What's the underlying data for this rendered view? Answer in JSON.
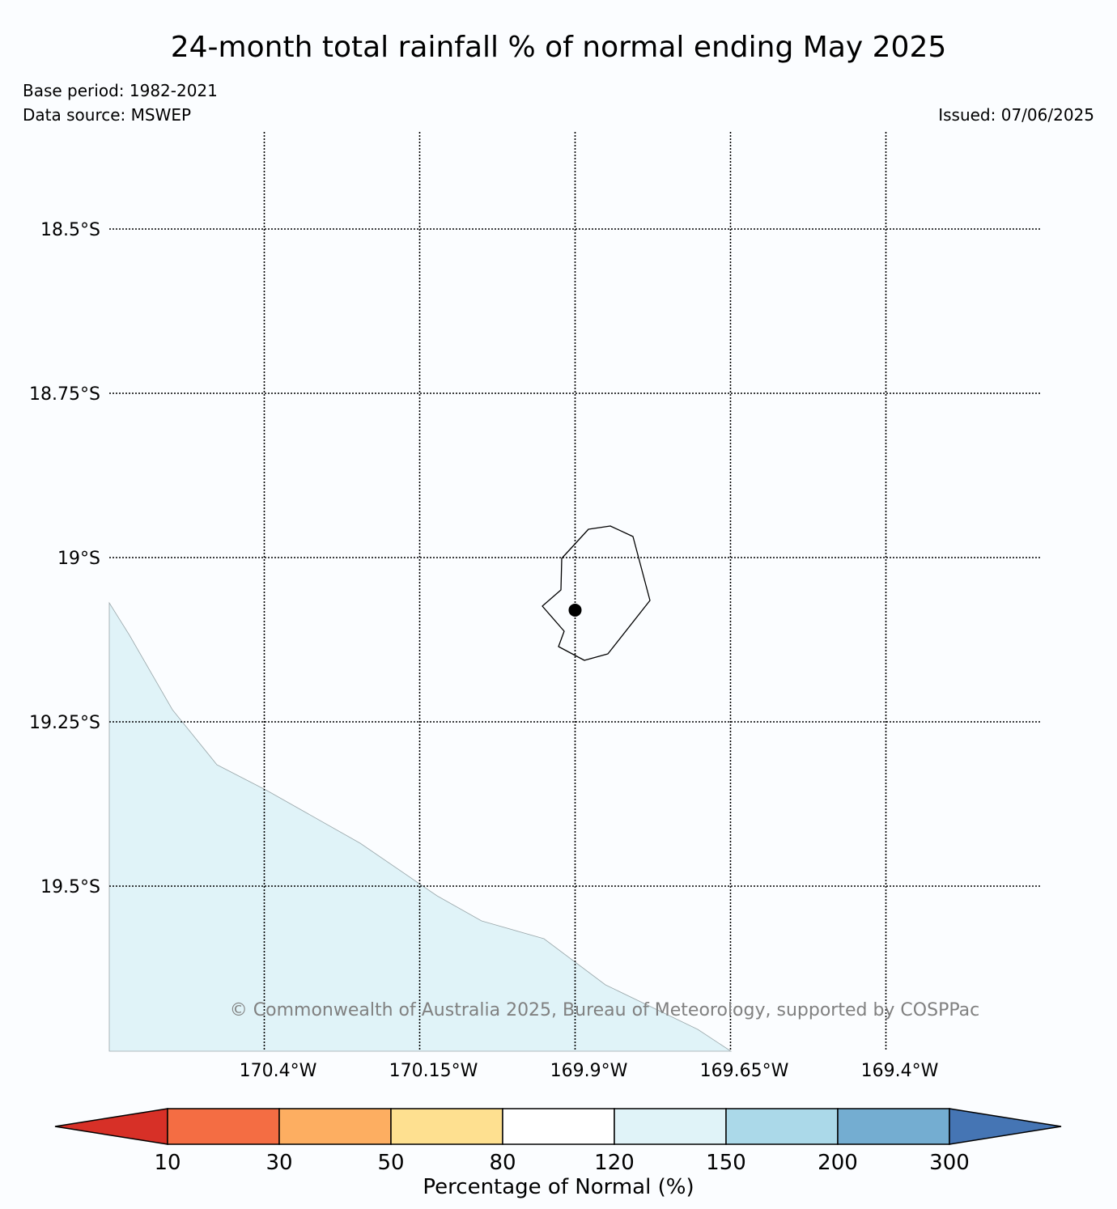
{
  "title": "24-month total rainfall % of normal ending May 2025",
  "base_period": "Base period: 1982-2021",
  "data_source": "Data source: MSWEP",
  "issued": "Issued: 07/06/2025",
  "copyright": "© Commonwealth of Australia 2025, Bureau of Meteorology, supported by COSPPac",
  "map": {
    "latitudes": [
      {
        "value": -18.5,
        "label": "18.5°S"
      },
      {
        "value": -18.75,
        "label": "18.75°S"
      },
      {
        "value": -19.0,
        "label": "19°S"
      },
      {
        "value": -19.25,
        "label": "19.25°S"
      },
      {
        "value": -19.5,
        "label": "19.5°S"
      }
    ],
    "longitudes": [
      {
        "value": -170.4,
        "label": "170.4°W"
      },
      {
        "value": -170.15,
        "label": "170.15°W"
      },
      {
        "value": -169.9,
        "label": "169.9°W"
      },
      {
        "value": -169.65,
        "label": "169.65°W"
      },
      {
        "value": -169.4,
        "label": "169.4°W"
      }
    ],
    "station_marker": {
      "lon": -169.9,
      "lat": -19.08
    },
    "shaded_region_color": "#e0f3f8",
    "land_outline_color": "#000000",
    "gridline_style": "dotted"
  },
  "colorbar": {
    "label": "Percentage of Normal (%)",
    "ticks": [
      "10",
      "30",
      "50",
      "80",
      "120",
      "150",
      "200",
      "300"
    ],
    "colors": [
      "#d73027",
      "#f46d43",
      "#fdae61",
      "#fee090",
      "#ffffff",
      "#e0f3f8",
      "#abd9e9",
      "#74add1",
      "#4575b4"
    ],
    "extend": "both"
  }
}
